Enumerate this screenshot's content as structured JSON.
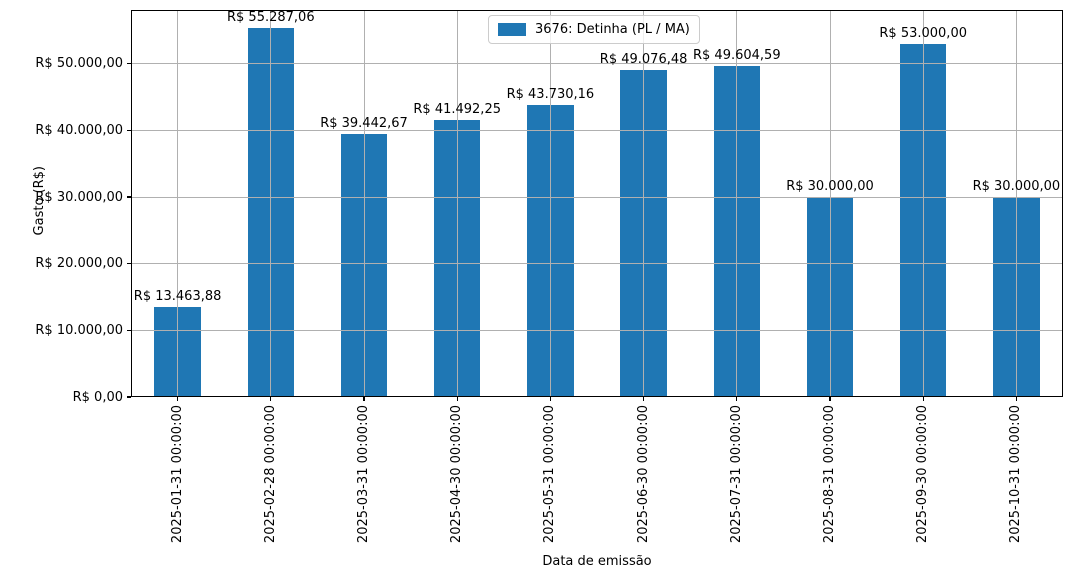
{
  "chart_data": {
    "type": "bar",
    "title": "",
    "xlabel": "Data de emissão",
    "ylabel": "Gasto (R$)",
    "legend_label": "3676: Detinha (PL / MA)",
    "legend_position": "upper center",
    "grid": true,
    "categories": [
      "2025-01-31 00:00:00",
      "2025-02-28 00:00:00",
      "2025-03-31 00:00:00",
      "2025-04-30 00:00:00",
      "2025-05-31 00:00:00",
      "2025-06-30 00:00:00",
      "2025-07-31 00:00:00",
      "2025-08-31 00:00:00",
      "2025-09-30 00:00:00",
      "2025-10-31 00:00:00"
    ],
    "values": [
      13463.88,
      55287.06,
      39442.67,
      41492.25,
      43730.16,
      49076.48,
      49604.59,
      30000.0,
      53000.0,
      30000.0
    ],
    "bar_labels": [
      "R$ 13.463,88",
      "R$ 55.287,06",
      "R$ 39.442,67",
      "R$ 41.492,25",
      "R$ 43.730,16",
      "R$ 49.076,48",
      "R$ 49.604,59",
      "R$ 30.000,00",
      "R$ 53.000,00",
      "R$ 30.000,00"
    ],
    "ytick_values": [
      0,
      10000,
      20000,
      30000,
      40000,
      50000
    ],
    "ytick_labels": [
      "R$ 0,00",
      "R$ 10.000,00",
      "R$ 20.000,00",
      "R$ 30.000,00",
      "R$ 40.000,00",
      "R$ 50.000,00"
    ],
    "ylim": [
      0,
      58051
    ],
    "bar_color": "#1f77b4",
    "grid_color": "#b0b0b0",
    "axis_color": "#000000"
  }
}
